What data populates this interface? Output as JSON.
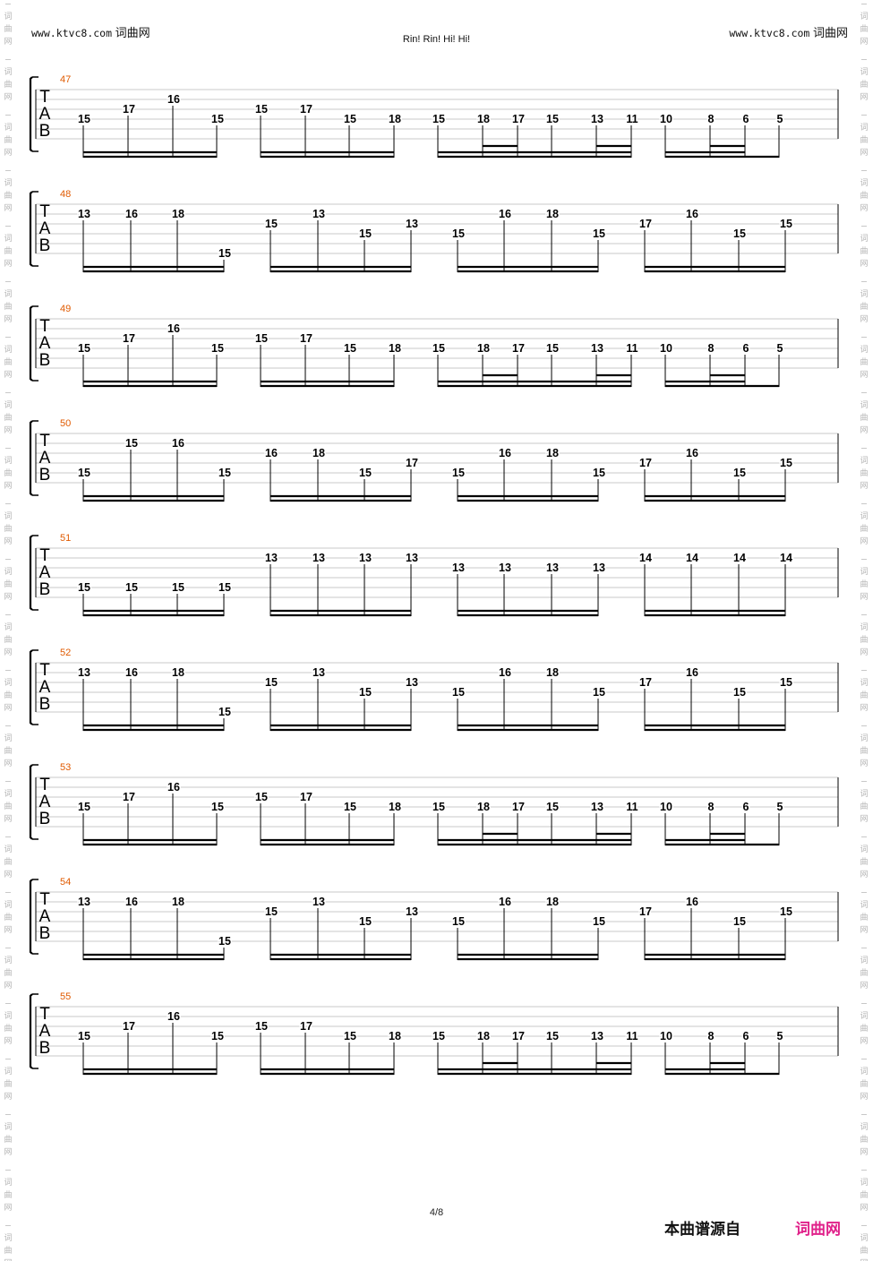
{
  "header": {
    "left_url": "www.ktvc8.com",
    "left_site": "词曲网",
    "right_url": "www.ktvc8.com",
    "right_site": "词曲网",
    "title": "Rin! Rin! Hi! Hi!"
  },
  "side_watermark": [
    "词",
    "曲",
    "网"
  ],
  "tab_clef": [
    "T",
    "A",
    "B"
  ],
  "colors": {
    "measure_number": "#e05a00",
    "footer_site": "#e0218a",
    "staff_line": "#c8c8c8",
    "stem": "#000000"
  },
  "systems": [
    {
      "measure": "47",
      "pattern": "A",
      "notes": [
        [
          "15",
          "17",
          "16",
          "15"
        ],
        [
          "15",
          "17",
          "15",
          "18"
        ],
        [
          "15",
          "18",
          "17",
          "15",
          "13",
          "11"
        ],
        [
          "10",
          "8",
          "6",
          "5"
        ]
      ]
    },
    {
      "measure": "48",
      "pattern": "B",
      "notes": [
        [
          "13",
          "16",
          "18",
          "15"
        ],
        [
          "15",
          "13",
          "15",
          "13"
        ],
        [
          "15",
          "16",
          "18",
          "15"
        ],
        [
          "17",
          "16",
          "15",
          "15"
        ]
      ]
    },
    {
      "measure": "49",
      "pattern": "A",
      "notes": [
        [
          "15",
          "17",
          "16",
          "15"
        ],
        [
          "15",
          "17",
          "15",
          "18"
        ],
        [
          "15",
          "18",
          "17",
          "15",
          "13",
          "11"
        ],
        [
          "10",
          "8",
          "6",
          "5"
        ]
      ]
    },
    {
      "measure": "50",
      "pattern": "B",
      "notes": [
        [
          "15",
          "15",
          "16",
          "15"
        ],
        [
          "16",
          "18",
          "15",
          "17"
        ],
        [
          "15",
          "16",
          "18",
          "15"
        ],
        [
          "17",
          "16",
          "15",
          "15"
        ]
      ]
    },
    {
      "measure": "51",
      "pattern": "B",
      "notes": [
        [
          "15",
          "15",
          "15",
          "15"
        ],
        [
          "13",
          "13",
          "13",
          "13"
        ],
        [
          "13",
          "13",
          "13",
          "13"
        ],
        [
          "14",
          "14",
          "14",
          "14"
        ]
      ]
    },
    {
      "measure": "52",
      "pattern": "B",
      "notes": [
        [
          "13",
          "16",
          "18",
          "15"
        ],
        [
          "15",
          "13",
          "15",
          "13"
        ],
        [
          "15",
          "16",
          "18",
          "15"
        ],
        [
          "17",
          "16",
          "15",
          "15"
        ]
      ]
    },
    {
      "measure": "53",
      "pattern": "A",
      "notes": [
        [
          "15",
          "17",
          "16",
          "15"
        ],
        [
          "15",
          "17",
          "15",
          "18"
        ],
        [
          "15",
          "18",
          "17",
          "15",
          "13",
          "11"
        ],
        [
          "10",
          "8",
          "6",
          "5"
        ]
      ]
    },
    {
      "measure": "54",
      "pattern": "B",
      "notes": [
        [
          "13",
          "16",
          "18",
          "15"
        ],
        [
          "15",
          "13",
          "15",
          "13"
        ],
        [
          "15",
          "16",
          "18",
          "15"
        ],
        [
          "17",
          "16",
          "15",
          "15"
        ]
      ]
    },
    {
      "measure": "55",
      "pattern": "A",
      "notes": [
        [
          "15",
          "17",
          "16",
          "15"
        ],
        [
          "15",
          "17",
          "15",
          "18"
        ],
        [
          "15",
          "18",
          "17",
          "15",
          "13",
          "11"
        ],
        [
          "10",
          "8",
          "6",
          "5"
        ]
      ]
    }
  ],
  "footer": {
    "page": "4/8",
    "source_label": "本曲谱源自",
    "source_site": "词曲网"
  }
}
